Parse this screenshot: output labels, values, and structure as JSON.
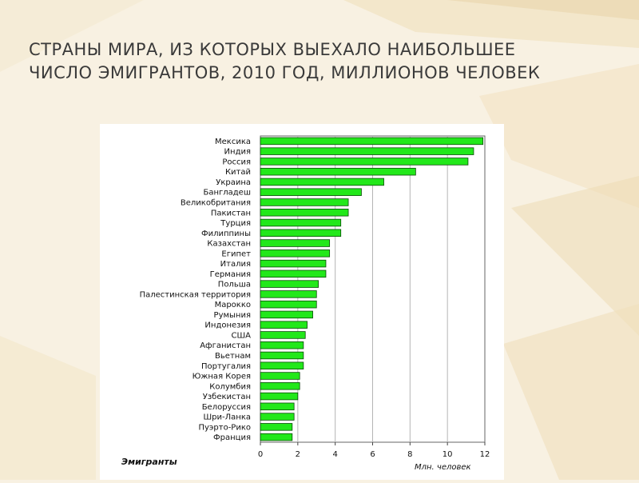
{
  "slide": {
    "title_line1": "СТРАНЫ МИРА, ИЗ КОТОРЫХ ВЫЕХАЛО НАИБОЛЬШЕЕ",
    "title_line2": "ЧИСЛО ЭМИГРАНТОВ, 2010 ГОД, МИЛЛИОНОВ ЧЕЛОВЕК"
  },
  "chart_data": {
    "type": "bar",
    "orientation": "horizontal",
    "categories": [
      "Мексика",
      "Индия",
      "Россия",
      "Китай",
      "Украина",
      "Бангладеш",
      "Великобритания",
      "Пакистан",
      "Турция",
      "Филиппины",
      "Казахстан",
      "Египет",
      "Италия",
      "Германия",
      "Польша",
      "Палестинская территория",
      "Марокко",
      "Румыния",
      "Индонезия",
      "США",
      "Афганистан",
      "Вьетнам",
      "Португалия",
      "Южная Корея",
      "Колумбия",
      "Узбекистан",
      "Белоруссия",
      "Шри-Ланка",
      "Пуэрто-Рико",
      "Франция"
    ],
    "values": [
      11.9,
      11.4,
      11.1,
      8.3,
      6.6,
      5.4,
      4.7,
      4.7,
      4.3,
      4.3,
      3.7,
      3.7,
      3.5,
      3.5,
      3.1,
      3.0,
      3.0,
      2.8,
      2.5,
      2.4,
      2.3,
      2.3,
      2.3,
      2.1,
      2.1,
      2.0,
      1.8,
      1.8,
      1.7,
      1.7
    ],
    "x_ticks": [
      "0",
      "2",
      "4",
      "6",
      "8",
      "10",
      "12"
    ],
    "xlim": [
      0,
      12
    ],
    "legend_label": "Эмигранты",
    "xlabel": "Млн. человек",
    "grid": true,
    "bar_color": "#22e81a",
    "bar_edge_color": "#0a4a08"
  }
}
